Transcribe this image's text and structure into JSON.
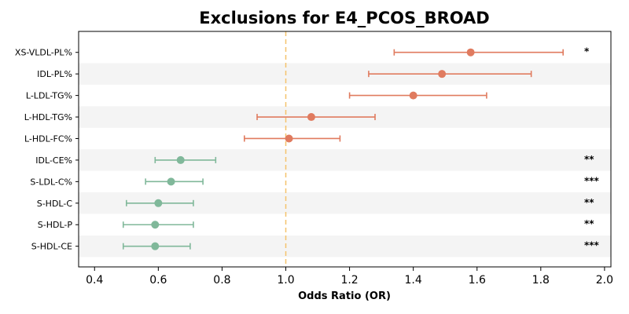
{
  "chart_data": {
    "type": "forest",
    "title": "Exclusions for E4_PCOS_BROAD",
    "xlabel": "Odds Ratio (OR)",
    "xlim": [
      0.35,
      2.02
    ],
    "xticks": [
      "0.4",
      "0.6",
      "0.8",
      "1.0",
      "1.2",
      "1.4",
      "1.6",
      "1.8",
      "2.0"
    ],
    "reference_line": 1.0,
    "reference_color": "#f5c26b",
    "colors": {
      "risk": "#e07b5f",
      "protective": "#80b89a",
      "band": "#f4f4f4"
    },
    "rows": [
      {
        "label": "XS-VLDL-PL%",
        "or": 1.58,
        "lo": 1.34,
        "hi": 1.87,
        "sig": "*",
        "group": "risk"
      },
      {
        "label": "IDL-PL%",
        "or": 1.49,
        "lo": 1.26,
        "hi": 1.77,
        "sig": "",
        "group": "risk"
      },
      {
        "label": "L-LDL-TG%",
        "or": 1.4,
        "lo": 1.2,
        "hi": 1.63,
        "sig": "",
        "group": "risk"
      },
      {
        "label": "L-HDL-TG%",
        "or": 1.08,
        "lo": 0.91,
        "hi": 1.28,
        "sig": "",
        "group": "risk"
      },
      {
        "label": "L-HDL-FC%",
        "or": 1.01,
        "lo": 0.87,
        "hi": 1.17,
        "sig": "",
        "group": "risk"
      },
      {
        "label": "IDL-CE%",
        "or": 0.67,
        "lo": 0.59,
        "hi": 0.78,
        "sig": "**",
        "group": "protective"
      },
      {
        "label": "S-LDL-C%",
        "or": 0.64,
        "lo": 0.56,
        "hi": 0.74,
        "sig": "***",
        "group": "protective"
      },
      {
        "label": "S-HDL-C",
        "or": 0.6,
        "lo": 0.5,
        "hi": 0.71,
        "sig": "**",
        "group": "protective"
      },
      {
        "label": "S-HDL-P",
        "or": 0.59,
        "lo": 0.49,
        "hi": 0.71,
        "sig": "**",
        "group": "protective"
      },
      {
        "label": "S-HDL-CE",
        "or": 0.59,
        "lo": 0.49,
        "hi": 0.7,
        "sig": "***",
        "group": "protective"
      }
    ]
  }
}
